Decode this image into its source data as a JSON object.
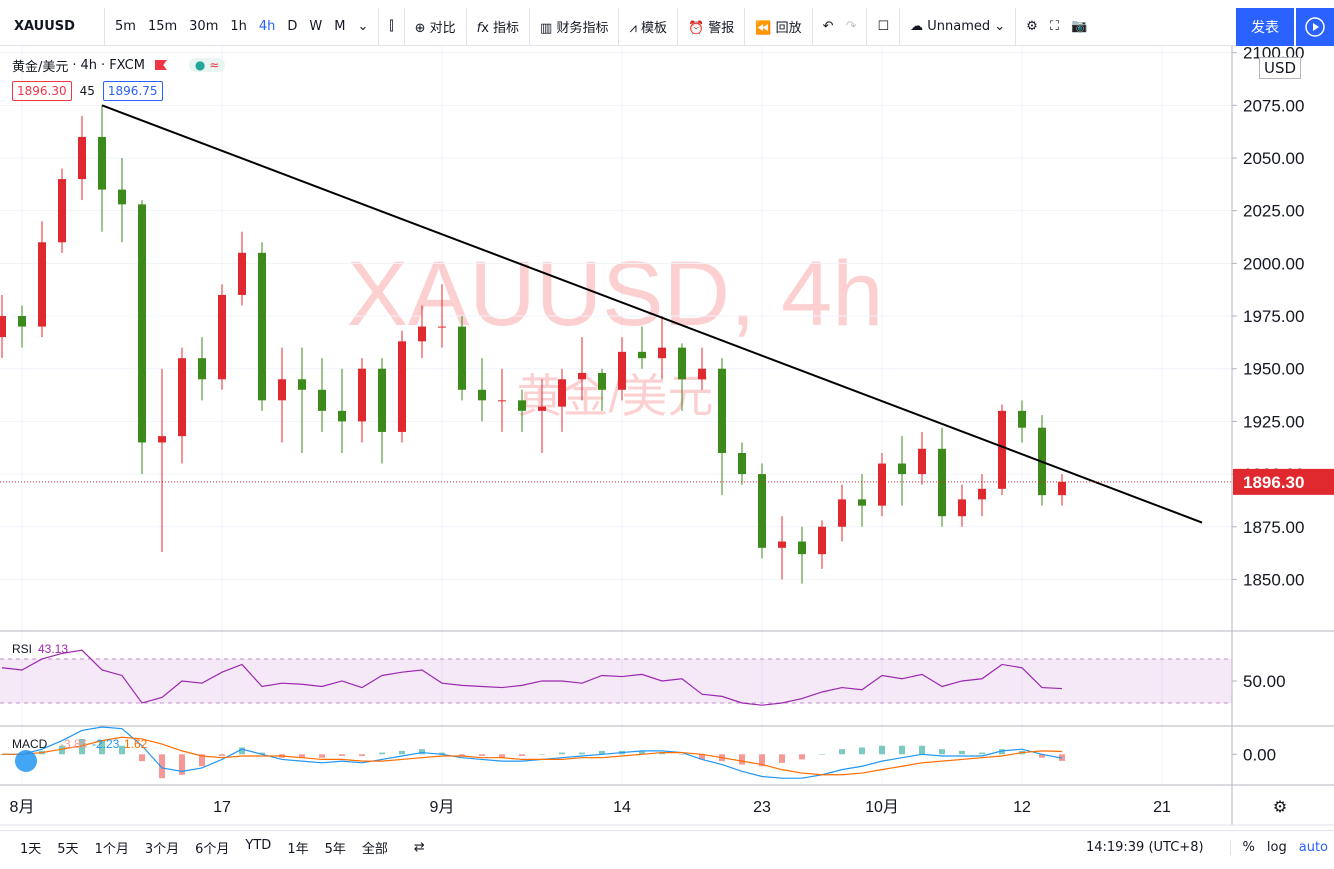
{
  "toolbar": {
    "symbol": "XAUUSD",
    "intervals": [
      "5m",
      "15m",
      "30m",
      "1h",
      "4h",
      "D",
      "W",
      "M"
    ],
    "buttons": [
      "对比",
      "指标",
      "财务指标",
      "模板",
      "警报",
      "回放"
    ],
    "layout_name": "Unnamed",
    "publish": "发表"
  },
  "legend": {
    "name": "黄金/美元",
    "interval": "4h",
    "source": "FXCM",
    "bid": "1896.30",
    "spread": "45",
    "ask": "1896.75"
  },
  "watermark": {
    "symbol": "XAUUSD, 4h",
    "name": "黄金/美元"
  },
  "bottom_bar": {
    "ranges": [
      "1天",
      "5天",
      "1个月",
      "3个月",
      "6个月",
      "YTD",
      "1年",
      "5年",
      "全部"
    ],
    "time": "14:19:39 (UTC+8)",
    "scale_options": [
      "%",
      "log",
      "auto"
    ]
  },
  "chart_data": [
    {
      "type": "candlestick",
      "currency": "USD",
      "up_color": "#e0292f",
      "down_color": "#3d8a1c",
      "x": [
        "07-31",
        "08-03",
        "08-04",
        "08-05",
        "08-06",
        "08-07",
        "08-10",
        "08-11",
        "08-12",
        "08-13",
        "08-14",
        "08-17",
        "08-18",
        "08-19",
        "08-20",
        "08-21",
        "08-24",
        "08-25",
        "08-26",
        "08-27",
        "08-28",
        "08-31",
        "09-01",
        "09-02",
        "09-03",
        "09-04",
        "09-07",
        "09-08",
        "09-09",
        "09-10",
        "09-11",
        "09-14",
        "09-15",
        "09-16",
        "09-17",
        "09-18",
        "09-21",
        "09-22",
        "09-23",
        "09-24",
        "09-25",
        "09-28",
        "09-29",
        "09-30",
        "10-01",
        "10-02",
        "10-05",
        "10-06",
        "10-07",
        "10-08",
        "10-09",
        "10-12",
        "10-13",
        "10-14",
        "10-15",
        "10-16",
        "10-19",
        "10-20",
        "10-21",
        "10-22",
        "10-23"
      ],
      "open": [
        1965,
        1975,
        1970,
        2010,
        2040,
        2060,
        2035,
        2028,
        1915,
        1918,
        1955,
        1945,
        1985,
        2005,
        1935,
        1945,
        1940,
        1930,
        1925,
        1950,
        1920,
        1963,
        1970,
        1970,
        1940,
        1935,
        1935,
        1930,
        1932,
        1945,
        1948,
        1940,
        1958,
        1955,
        1960,
        1945,
        1950,
        1910,
        1900,
        1865,
        1868,
        1862,
        1875,
        1888,
        1885,
        1905,
        1900,
        1912,
        1880,
        1888,
        1893,
        1930,
        1922,
        1890,
        null,
        null,
        null,
        null,
        null,
        null,
        null
      ],
      "high": [
        1985,
        1980,
        2020,
        2045,
        2070,
        2075,
        2050,
        2030,
        1950,
        1960,
        1965,
        1990,
        2015,
        2010,
        1960,
        1960,
        1955,
        1950,
        1955,
        1955,
        1968,
        1980,
        1990,
        1975,
        1955,
        1950,
        1940,
        1945,
        1950,
        1965,
        1950,
        1965,
        1970,
        1975,
        1962,
        1960,
        1955,
        1915,
        1905,
        1880,
        1875,
        1878,
        1895,
        1900,
        1910,
        1918,
        1920,
        1922,
        1895,
        1900,
        1933,
        1935,
        1928,
        1900,
        null,
        null,
        null,
        null,
        null,
        null,
        null
      ],
      "low": [
        1955,
        1960,
        1965,
        2005,
        2030,
        2015,
        2010,
        1900,
        1863,
        1905,
        1935,
        1940,
        1980,
        1930,
        1915,
        1910,
        1920,
        1910,
        1915,
        1905,
        1915,
        1955,
        1960,
        1935,
        1925,
        1920,
        1920,
        1910,
        1920,
        1935,
        1930,
        1935,
        1950,
        1945,
        1930,
        1940,
        1890,
        1895,
        1860,
        1850,
        1848,
        1855,
        1868,
        1875,
        1880,
        1885,
        1895,
        1875,
        1875,
        1880,
        1890,
        1915,
        1885,
        1885,
        null,
        null,
        null,
        null,
        null,
        null,
        null
      ],
      "close": [
        1975,
        1970,
        2010,
        2040,
        2060,
        2035,
        2028,
        1915,
        1918,
        1955,
        1945,
        1985,
        2005,
        1935,
        1945,
        1940,
        1930,
        1925,
        1950,
        1920,
        1963,
        1970,
        1970,
        1940,
        1935,
        1935,
        1930,
        1932,
        1945,
        1948,
        1940,
        1958,
        1955,
        1960,
        1945,
        1950,
        1910,
        1900,
        1865,
        1868,
        1862,
        1875,
        1888,
        1885,
        1905,
        1900,
        1912,
        1880,
        1888,
        1893,
        1930,
        1922,
        1890,
        1896.3,
        null,
        null,
        null,
        null,
        null,
        null,
        null
      ],
      "last_price": {
        "value": 1896.3,
        "label": "1896.30"
      },
      "trendline": {
        "x": [
          "08-07",
          "10-23"
        ],
        "values": [
          2075,
          1877
        ],
        "color": "#000000"
      },
      "ylim": [
        1826,
        2106
      ],
      "yticks": [
        {
          "value": 1850,
          "label": "1850.00"
        },
        {
          "value": 1875,
          "label": "1875.00"
        },
        {
          "value": 1900,
          "label": "1900.00"
        },
        {
          "value": 1925,
          "label": "1925.00"
        },
        {
          "value": 1950,
          "label": "1950.00"
        },
        {
          "value": 1975,
          "label": "1975.00"
        },
        {
          "value": 2000,
          "label": "2000.00"
        },
        {
          "value": 2025,
          "label": "2025.00"
        },
        {
          "value": 2050,
          "label": "2050.00"
        },
        {
          "value": 2075,
          "label": "2075.00"
        },
        {
          "value": 2100,
          "label": "2100.00"
        }
      ],
      "xticks": [
        {
          "value": "08-03",
          "label": "8月"
        },
        {
          "value": "08-17",
          "label": "17"
        },
        {
          "value": "09-01",
          "label": "9月"
        },
        {
          "value": "09-14",
          "label": "14"
        },
        {
          "value": "09-23",
          "label": "23"
        },
        {
          "value": "10-01",
          "label": "10月"
        },
        {
          "value": "10-12",
          "label": "12"
        },
        {
          "value": "10-21",
          "label": "21"
        }
      ],
      "grid": true
    },
    {
      "type": "line",
      "title": "RSI",
      "bands": [
        30,
        70
      ],
      "series": [
        {
          "name": "RSI",
          "color": "#9c27b0",
          "values": [
            62,
            60,
            70,
            75,
            78,
            60,
            55,
            30,
            35,
            50,
            48,
            58,
            65,
            45,
            48,
            47,
            45,
            50,
            44,
            55,
            58,
            60,
            48,
            46,
            45,
            44,
            46,
            50,
            50,
            48,
            55,
            54,
            56,
            50,
            52,
            38,
            36,
            30,
            28,
            30,
            34,
            40,
            44,
            42,
            55,
            52,
            56,
            45,
            50,
            52,
            65,
            62,
            44,
            43.13,
            null,
            null,
            null,
            null,
            null,
            null,
            null
          ]
        }
      ],
      "ylim": [
        10,
        94.5
      ],
      "yticks": [
        {
          "value": 50,
          "label": "50.00"
        }
      ]
    },
    {
      "type": "macd",
      "title": "MACD",
      "series": [
        {
          "name": "Histogram",
          "color": "#26a69a",
          "negative_color": "#ef5350",
          "values": [
            0,
            0,
            2,
            5,
            9,
            8,
            5,
            -4,
            -14,
            -12,
            -7,
            -1,
            4,
            1,
            -2,
            -2,
            -2,
            -1,
            -1,
            1,
            2,
            3,
            1,
            -1,
            -1,
            -2,
            -1,
            0,
            1,
            1,
            2,
            2,
            2,
            1,
            0,
            -3,
            -4,
            -6,
            -7,
            -5,
            -3,
            0,
            3,
            4,
            5,
            5,
            5,
            3,
            2,
            1,
            3,
            2,
            -2,
            -3.86,
            null,
            null,
            null,
            null,
            null,
            null,
            null
          ]
        },
        {
          "name": "MACD",
          "color": "#2196f3",
          "values": [
            0,
            0,
            3,
            8,
            14,
            16,
            15,
            5,
            -8,
            -10,
            -8,
            -3,
            3,
            0,
            -3,
            -4,
            -5,
            -4,
            -5,
            -3,
            -1,
            1,
            0,
            -2,
            -3,
            -4,
            -4,
            -3,
            -2,
            -1,
            0,
            1,
            2,
            2,
            1,
            -3,
            -6,
            -10,
            -13,
            -14,
            -14,
            -12,
            -9,
            -7,
            -4,
            -2,
            0,
            -1,
            -1,
            -1,
            2,
            3,
            0,
            -2.23,
            null,
            null,
            null,
            null,
            null,
            null,
            null
          ]
        },
        {
          "name": "Signal",
          "color": "#ff6d00",
          "values": [
            0,
            0,
            1,
            3,
            5,
            8,
            10,
            9,
            6,
            2,
            -1,
            -2,
            -1,
            -1,
            -1,
            -2,
            -3,
            -3,
            -4,
            -4,
            -3,
            -2,
            -1,
            -1,
            -2,
            -2,
            -3,
            -3,
            -3,
            -2,
            -2,
            -1,
            0,
            1,
            1,
            0,
            -2,
            -4,
            -6,
            -9,
            -11,
            -12,
            -12,
            -11,
            -9,
            -7,
            -5,
            -4,
            -3,
            -2,
            -1,
            1,
            2,
            1.62,
            null,
            null,
            null,
            null,
            null,
            null,
            null
          ]
        }
      ],
      "ylim": [
        -18,
        16
      ],
      "yticks": [
        {
          "value": 0,
          "label": "0.00"
        }
      ]
    }
  ]
}
